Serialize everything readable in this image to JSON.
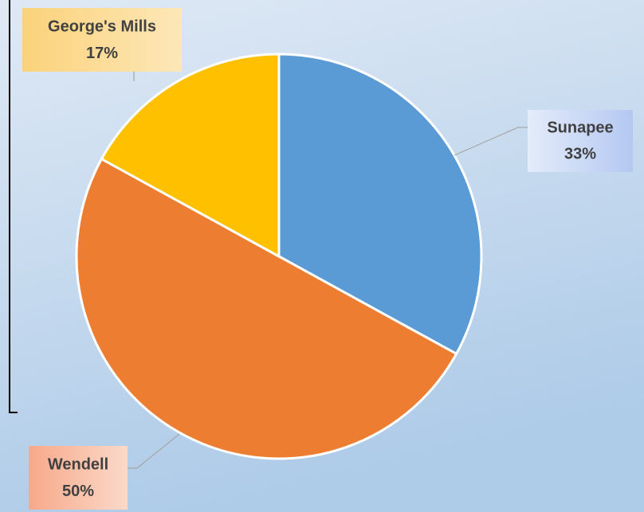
{
  "chart_data": {
    "type": "pie",
    "categories": [
      "Sunapee",
      "Wendell",
      "George's Mills"
    ],
    "values": [
      33,
      50,
      17
    ],
    "value_labels": [
      "33%",
      "50%",
      "17%"
    ],
    "colors": [
      "#5b9bd5",
      "#ed7d31",
      "#ffc000"
    ]
  }
}
